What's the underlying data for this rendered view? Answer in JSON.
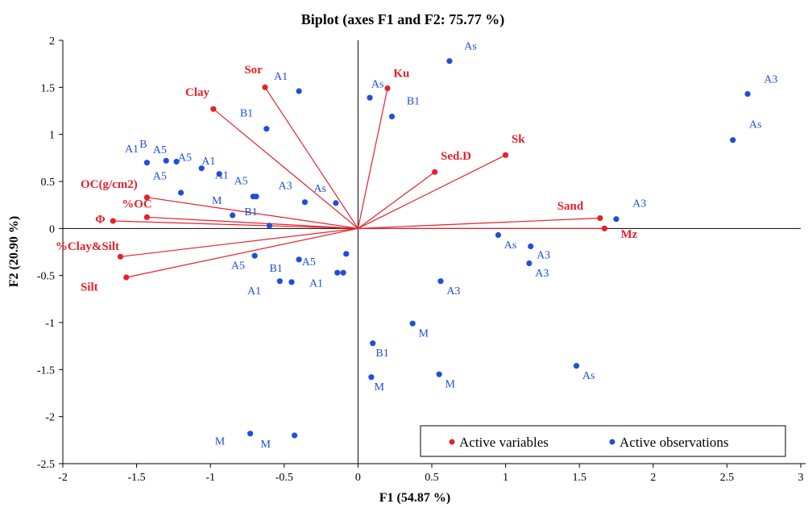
{
  "chart_data": {
    "type": "scatter",
    "title": "Biplot (axes F1 and F2: 75.77 %)",
    "xlabel": "F1 (54.87 %)",
    "ylabel": "F2 (20.90 %)",
    "xlim": [
      -2,
      3
    ],
    "ylim": [
      -2.5,
      2
    ],
    "xticks": [
      "-2",
      "-1.5",
      "-1",
      "-0.5",
      "0",
      "0.5",
      "1",
      "1.5",
      "2",
      "2.5",
      "3"
    ],
    "yticks": [
      "2",
      "1.5",
      "1",
      "0.5",
      "0",
      "-0.5",
      "-1",
      "-1.5",
      "-2",
      "-2.5"
    ],
    "grid": false,
    "legend_position": "bottom-right",
    "legend": [
      "Active variables",
      "Active observations"
    ],
    "colors": {
      "variables": "#e8202a",
      "observations": "#1f4fd6",
      "vector": "#e8202a",
      "axis": "#000000"
    },
    "variables": [
      {
        "name": "Sor",
        "x": -0.63,
        "y": 1.5,
        "lx": -0.77,
        "ly": 1.65
      },
      {
        "name": "Clay",
        "x": -0.98,
        "y": 1.27,
        "lx": -1.17,
        "ly": 1.41
      },
      {
        "name": "Ku",
        "x": 0.2,
        "y": 1.49,
        "lx": 0.24,
        "ly": 1.61
      },
      {
        "name": "Sk",
        "x": 1.0,
        "y": 0.78,
        "lx": 1.04,
        "ly": 0.91
      },
      {
        "name": "Sed.D",
        "x": 0.52,
        "y": 0.6,
        "lx": 0.56,
        "ly": 0.73
      },
      {
        "name": "OC(g/cm2)",
        "x": -1.43,
        "y": 0.33,
        "lx": -1.88,
        "ly": 0.43
      },
      {
        "name": "%OC",
        "x": -1.43,
        "y": 0.12,
        "lx": -1.6,
        "ly": 0.22
      },
      {
        "name": "Φ",
        "x": -1.66,
        "y": 0.08,
        "lx": -1.78,
        "ly": 0.06
      },
      {
        "name": "%Clay&Silt",
        "x": -1.61,
        "y": -0.3,
        "lx": -2.05,
        "ly": -0.23
      },
      {
        "name": "Silt",
        "x": -1.57,
        "y": -0.52,
        "lx": -1.88,
        "ly": -0.66
      },
      {
        "name": "Sand",
        "x": 1.64,
        "y": 0.11,
        "lx": 1.35,
        "ly": 0.2
      },
      {
        "name": "Mz",
        "x": 1.67,
        "y": 0.0,
        "lx": 1.78,
        "ly": -0.1
      }
    ],
    "observations": [
      {
        "name": "As",
        "x": 0.62,
        "y": 1.78,
        "lx": 0.72,
        "ly": 1.9
      },
      {
        "name": "As",
        "x": 0.08,
        "y": 1.39,
        "lx": 0.09,
        "ly": 1.5
      },
      {
        "name": "B1",
        "x": 0.23,
        "y": 1.19,
        "lx": 0.33,
        "ly": 1.32
      },
      {
        "name": "A1",
        "x": -0.4,
        "y": 1.46,
        "lx": -0.57,
        "ly": 1.58
      },
      {
        "name": "B1",
        "x": -0.62,
        "y": 1.06,
        "lx": -0.8,
        "ly": 1.19
      },
      {
        "name": "A3",
        "x": 2.64,
        "y": 1.43,
        "lx": 2.75,
        "ly": 1.55
      },
      {
        "name": "As",
        "x": 2.54,
        "y": 0.94,
        "lx": 2.65,
        "ly": 1.07
      },
      {
        "name": "A3",
        "x": 1.75,
        "y": 0.1,
        "lx": 1.86,
        "ly": 0.23
      },
      {
        "name": "As",
        "x": -0.15,
        "y": 0.27,
        "lx": -0.3,
        "ly": 0.39
      },
      {
        "name": "A3",
        "x": -0.36,
        "y": 0.28,
        "lx": -0.54,
        "ly": 0.42
      },
      {
        "name": "A5",
        "x": -0.69,
        "y": 0.34,
        "lx": -0.84,
        "ly": 0.47
      },
      {
        "name": "A5",
        "x": -0.71,
        "y": 0.34,
        "lx": -0.84,
        "ly": 0.47,
        "hide": true
      },
      {
        "name": "M",
        "x": -0.85,
        "y": 0.14,
        "lx": -0.99,
        "ly": 0.26
      },
      {
        "name": "B1",
        "x": -0.6,
        "y": 0.03,
        "lx": -0.77,
        "ly": 0.14
      },
      {
        "name": "A1",
        "x": -1.43,
        "y": 0.7,
        "lx": -1.58,
        "ly": 0.81
      },
      {
        "name": "B",
        "x": -1.3,
        "y": 0.72,
        "lx": -1.48,
        "ly": 0.86
      },
      {
        "name": "A5",
        "x": -1.23,
        "y": 0.71,
        "lx": -1.39,
        "ly": 0.8
      },
      {
        "name": "A5",
        "x": -1.2,
        "y": 0.38,
        "lx": -1.39,
        "ly": 0.52
      },
      {
        "name": "A5",
        "x": -1.06,
        "y": 0.64,
        "lx": -1.22,
        "ly": 0.72
      },
      {
        "name": "A1",
        "x": -0.94,
        "y": 0.58,
        "lx": -1.06,
        "ly": 0.68
      },
      {
        "name": "A1",
        "x": -0.7,
        "y": -0.29,
        "lx": -0.97,
        "ly": 0.53
      },
      {
        "name": "A5",
        "x": -0.53,
        "y": -0.56,
        "lx": -0.86,
        "ly": -0.43
      },
      {
        "name": "B1",
        "x": -0.4,
        "y": -0.33,
        "lx": -0.6,
        "ly": -0.46
      },
      {
        "name": "A1",
        "x": -0.1,
        "y": -0.47,
        "lx": -0.75,
        "ly": -0.7
      },
      {
        "name": "A5",
        "x": -0.08,
        "y": -0.27,
        "lx": -0.38,
        "ly": -0.39
      },
      {
        "name": "A1",
        "x": -0.14,
        "y": -0.47,
        "lx": -0.33,
        "ly": -0.62,
        "hide": true
      },
      {
        "name": "A1",
        "x": -0.45,
        "y": -0.57,
        "lx": -0.33,
        "ly": -0.62
      },
      {
        "name": "As",
        "x": 0.95,
        "y": -0.07,
        "lx": 0.99,
        "ly": -0.21
      },
      {
        "name": "A3",
        "x": 1.17,
        "y": -0.19,
        "lx": 1.21,
        "ly": -0.32
      },
      {
        "name": "A3",
        "x": 1.16,
        "y": -0.37,
        "lx": 1.2,
        "ly": -0.51
      },
      {
        "name": "A3",
        "x": 0.56,
        "y": -0.56,
        "lx": 0.6,
        "ly": -0.7
      },
      {
        "name": "M",
        "x": 0.37,
        "y": -1.01,
        "lx": 0.41,
        "ly": -1.15
      },
      {
        "name": "B1",
        "x": 0.1,
        "y": -1.22,
        "lx": 0.12,
        "ly": -1.36
      },
      {
        "name": "M",
        "x": 0.09,
        "y": -1.58,
        "lx": 0.11,
        "ly": -1.72
      },
      {
        "name": "M",
        "x": 0.55,
        "y": -1.55,
        "lx": 0.59,
        "ly": -1.69
      },
      {
        "name": "As",
        "x": 1.48,
        "y": -1.46,
        "lx": 1.52,
        "ly": -1.6
      },
      {
        "name": "M",
        "x": -0.73,
        "y": -2.18,
        "lx": -0.97,
        "ly": -2.3
      },
      {
        "name": "M",
        "x": -0.43,
        "y": -2.2,
        "lx": -0.66,
        "ly": -2.33
      }
    ]
  }
}
